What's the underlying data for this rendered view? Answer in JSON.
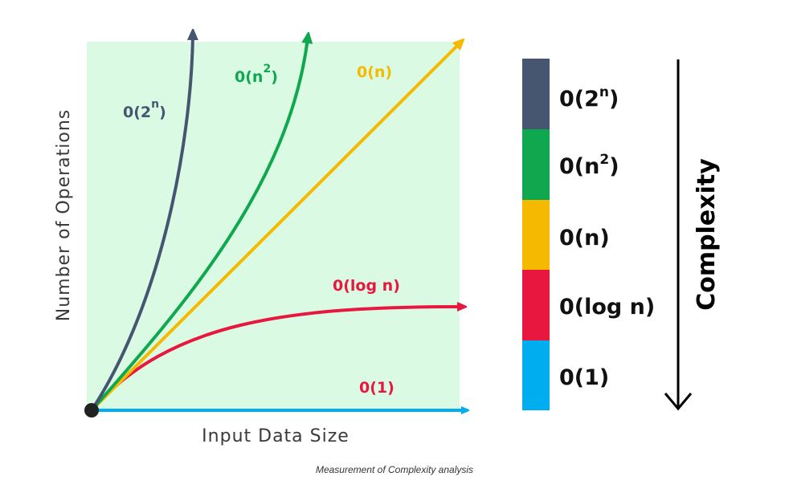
{
  "chart_data": {
    "type": "line",
    "xlabel": "Input Data Size",
    "ylabel": "Number of Operations",
    "grid": false,
    "series": [
      {
        "name": "0(1)",
        "base": "0(1)",
        "sup": "",
        "color": "#00AEEF"
      },
      {
        "name": "0(log n)",
        "base": "0(log n)",
        "sup": "",
        "color": "#E8173F"
      },
      {
        "name": "0(n)",
        "base": "0(n)",
        "sup": "",
        "color": "#F5BA00"
      },
      {
        "name": "0(n2)",
        "base": "0(n",
        "sup": "2",
        "color": "#0FA84E"
      },
      {
        "name": "0(2n)",
        "base": "0(2",
        "sup": "n",
        "color": "#465570"
      }
    ]
  },
  "legend": {
    "title": "Complexity",
    "direction": "increasing-upward",
    "items": [
      {
        "base": "0(2",
        "sup": "n",
        "tail": ")",
        "color": "#465570"
      },
      {
        "base": "0(n",
        "sup": "2",
        "tail": ")",
        "color": "#0FA84E"
      },
      {
        "base": "0(n)",
        "sup": "",
        "tail": "",
        "color": "#F5BA00"
      },
      {
        "base": "0(log n)",
        "sup": "",
        "tail": "",
        "color": "#E8173F"
      },
      {
        "base": "0(1)",
        "sup": "",
        "tail": "",
        "color": "#00AEEF"
      }
    ]
  },
  "colors": {
    "plot_background": "#DAFAE3",
    "origin_dot": "#222222",
    "axis_text": "#3a3a3a"
  },
  "caption": "Measurement of Complexity analysis"
}
